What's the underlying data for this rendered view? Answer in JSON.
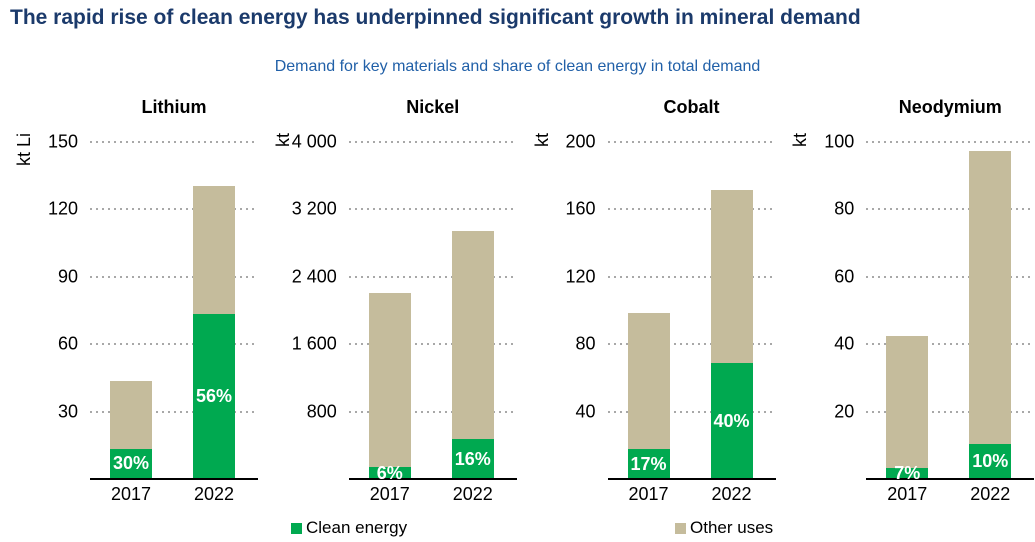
{
  "title": "The rapid rise of clean energy has underpinned significant growth in mineral demand",
  "subtitle": "Demand for key materials and share of clean energy in total demand",
  "colors": {
    "clean_energy": "#00a950",
    "other_uses": "#c5bc9c",
    "title_navy": "#1b3a6b",
    "subtitle_blue": "#2160a8",
    "gridline_gray": "#a8a8a8"
  },
  "legend": [
    {
      "label": "Clean energy",
      "color": "#00a950"
    },
    {
      "label": "Other uses",
      "color": "#c5bc9c"
    }
  ],
  "chart_data": [
    {
      "type": "bar",
      "stacked": true,
      "title": "Lithium",
      "ylabel": "kt Li",
      "categories": [
        "2017",
        "2022"
      ],
      "series": [
        {
          "name": "Clean energy",
          "values": [
            13,
            73
          ]
        },
        {
          "name": "Other uses",
          "values": [
            30,
            57
          ]
        }
      ],
      "totals": [
        43,
        130
      ],
      "share_labels": [
        "30%",
        "56%"
      ],
      "ylim": [
        0,
        150
      ],
      "ytick_labels": [
        "30",
        "60",
        "90",
        "120",
        "150"
      ],
      "grid": "dotted horizontal"
    },
    {
      "type": "bar",
      "stacked": true,
      "title": "Nickel",
      "ylabel": "kt",
      "categories": [
        "2017",
        "2022"
      ],
      "series": [
        {
          "name": "Clean energy",
          "values": [
            130,
            460
          ]
        },
        {
          "name": "Other uses",
          "values": [
            2070,
            2470
          ]
        }
      ],
      "totals": [
        2200,
        2930
      ],
      "share_labels": [
        "6%",
        "16%"
      ],
      "ylim": [
        0,
        4000
      ],
      "ytick_labels": [
        "800",
        "1 600",
        "2 400",
        "3 200",
        "4 000"
      ],
      "grid": "dotted horizontal"
    },
    {
      "type": "bar",
      "stacked": true,
      "title": "Cobalt",
      "ylabel": "kt",
      "categories": [
        "2017",
        "2022"
      ],
      "series": [
        {
          "name": "Clean energy",
          "values": [
            17,
            68
          ]
        },
        {
          "name": "Other uses",
          "values": [
            81,
            103
          ]
        }
      ],
      "totals": [
        98,
        171
      ],
      "share_labels": [
        "17%",
        "40%"
      ],
      "ylim": [
        0,
        200
      ],
      "ytick_labels": [
        "40",
        "80",
        "120",
        "160",
        "200"
      ],
      "grid": "dotted horizontal"
    },
    {
      "type": "bar",
      "stacked": true,
      "title": "Neodymium",
      "ylabel": "kt",
      "categories": [
        "2017",
        "2022"
      ],
      "series": [
        {
          "name": "Clean energy",
          "values": [
            3,
            10
          ]
        },
        {
          "name": "Other uses",
          "values": [
            39,
            87
          ]
        }
      ],
      "totals": [
        42,
        97
      ],
      "share_labels": [
        "7%",
        "10%"
      ],
      "ylim": [
        0,
        100
      ],
      "ytick_labels": [
        "20",
        "40",
        "60",
        "80",
        "100"
      ],
      "grid": "dotted horizontal"
    }
  ]
}
